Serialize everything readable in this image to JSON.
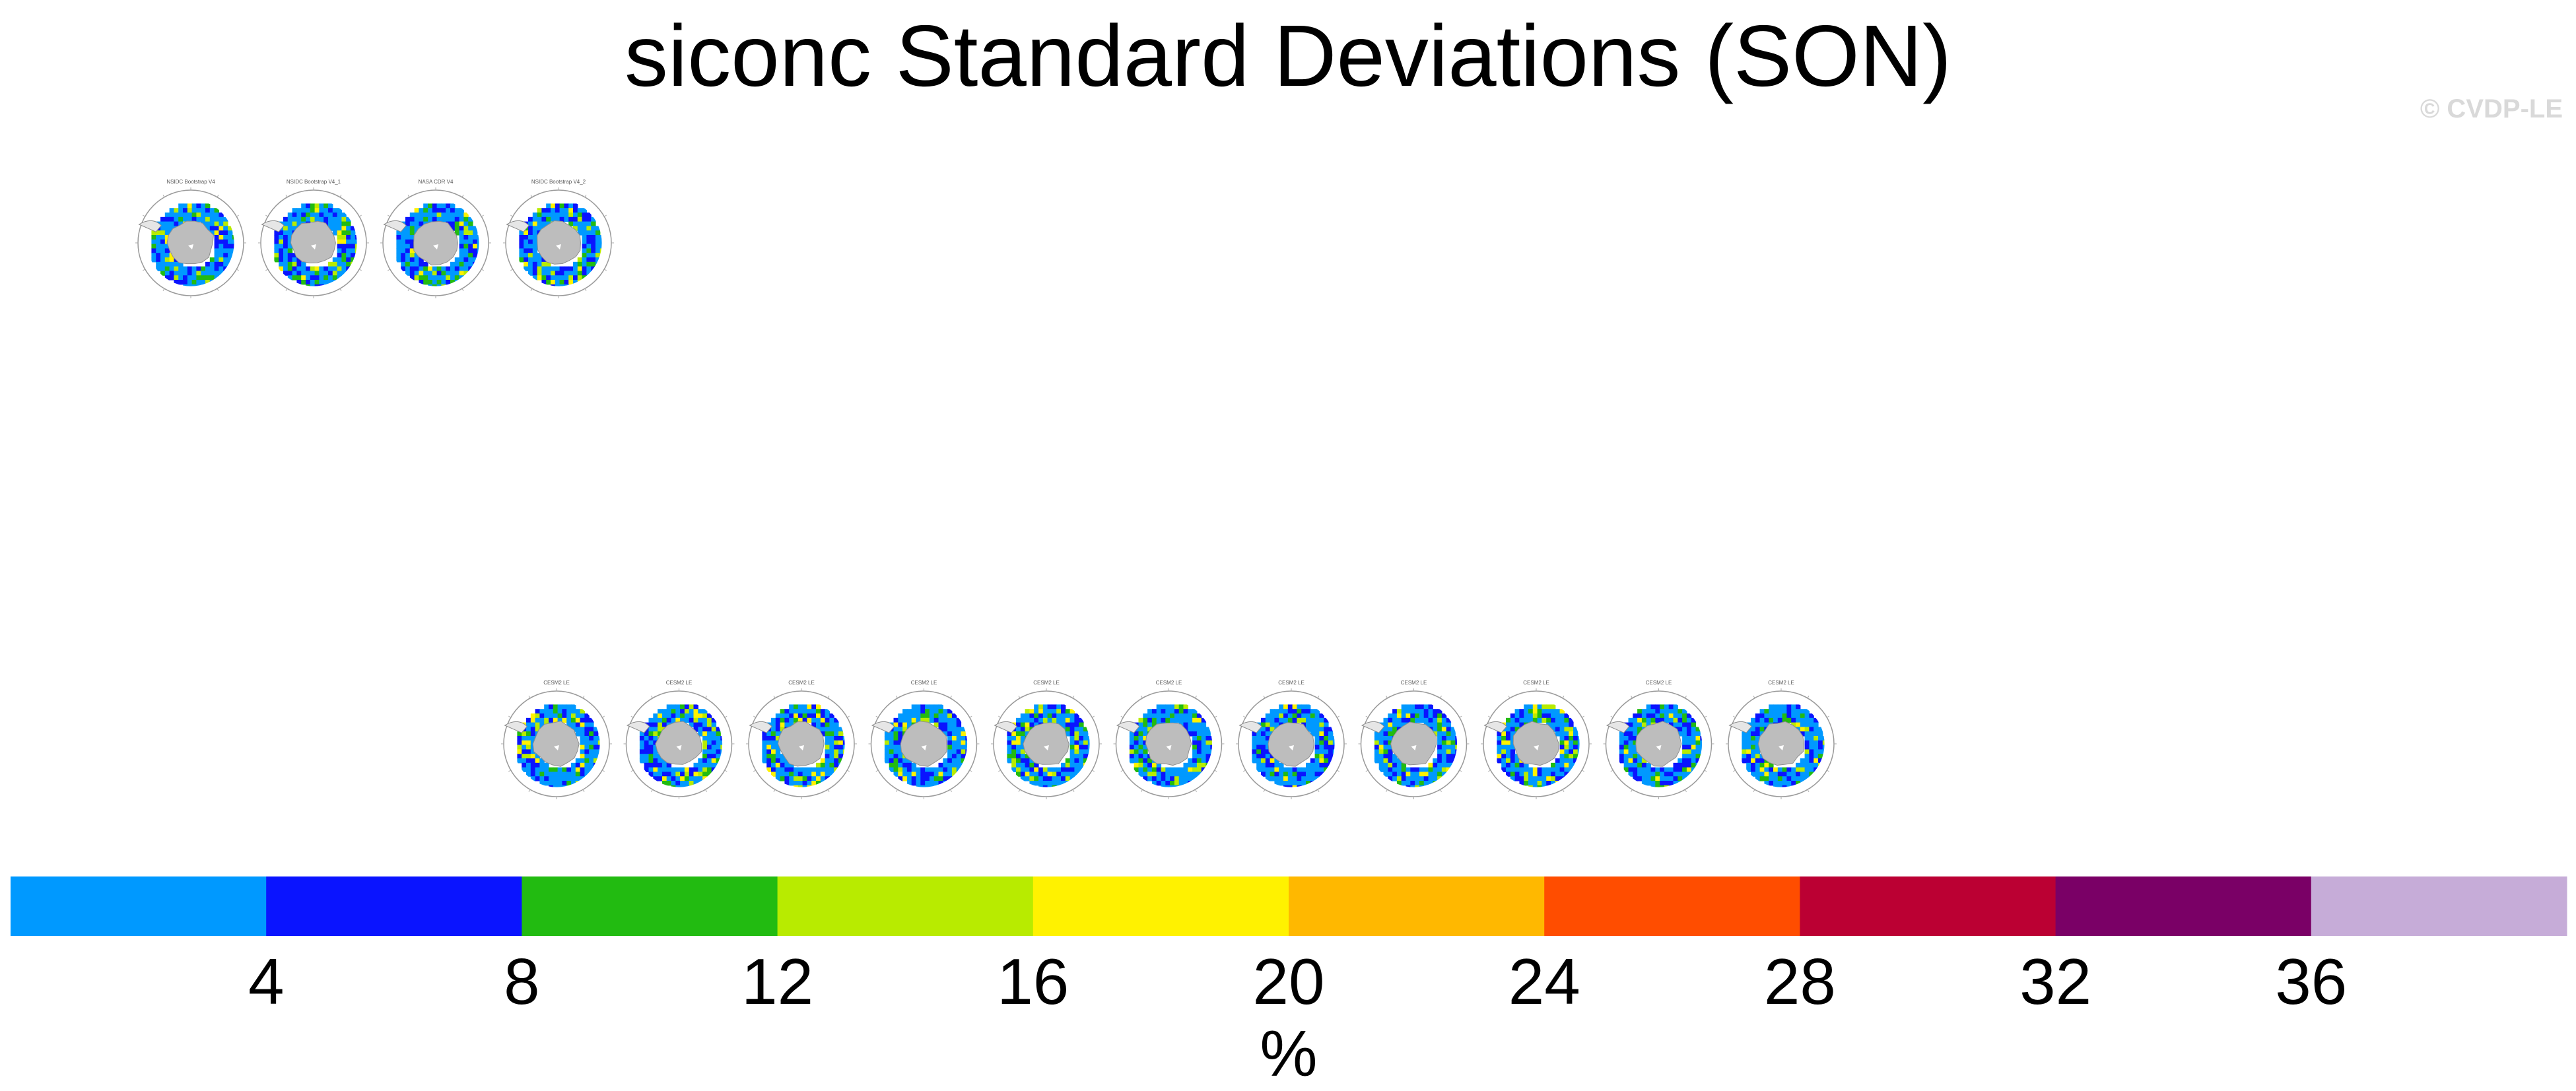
{
  "title": "siconc Standard Deviations (SON)",
  "watermark": "© CVDP-LE",
  "chart_data": {
    "type": "heatmap",
    "title": "siconc Standard Deviations (SON)",
    "description_projection": "south-polar-stereographic",
    "observation_panels": [
      {
        "label": "NSIDC Bootstrap V4"
      },
      {
        "label": "NSIDC Bootstrap V4_1"
      },
      {
        "label": "NASA CDR V4"
      },
      {
        "label": "NSIDC Bootstrap V4_2"
      }
    ],
    "ensemble_panels": [
      {
        "label": "CESM2 LE"
      },
      {
        "label": "CESM2 LE"
      },
      {
        "label": "CESM2 LE"
      },
      {
        "label": "CESM2 LE"
      },
      {
        "label": "CESM2 LE"
      },
      {
        "label": "CESM2 LE"
      },
      {
        "label": "CESM2 LE"
      },
      {
        "label": "CESM2 LE"
      },
      {
        "label": "CESM2 LE"
      },
      {
        "label": "CESM2 LE"
      },
      {
        "label": "CESM2 LE"
      }
    ],
    "colorbar": {
      "label": "%",
      "ticks": [
        4,
        8,
        12,
        16,
        20,
        24,
        28,
        32,
        36
      ],
      "range": [
        0,
        40
      ],
      "colors": [
        "#0099ff",
        "#0a14ff",
        "#22bb11",
        "#b8eb00",
        "#fff200",
        "#ffb800",
        "#ff4d00",
        "#bb0033",
        "#7a0066",
        "#c6acd8"
      ]
    }
  }
}
